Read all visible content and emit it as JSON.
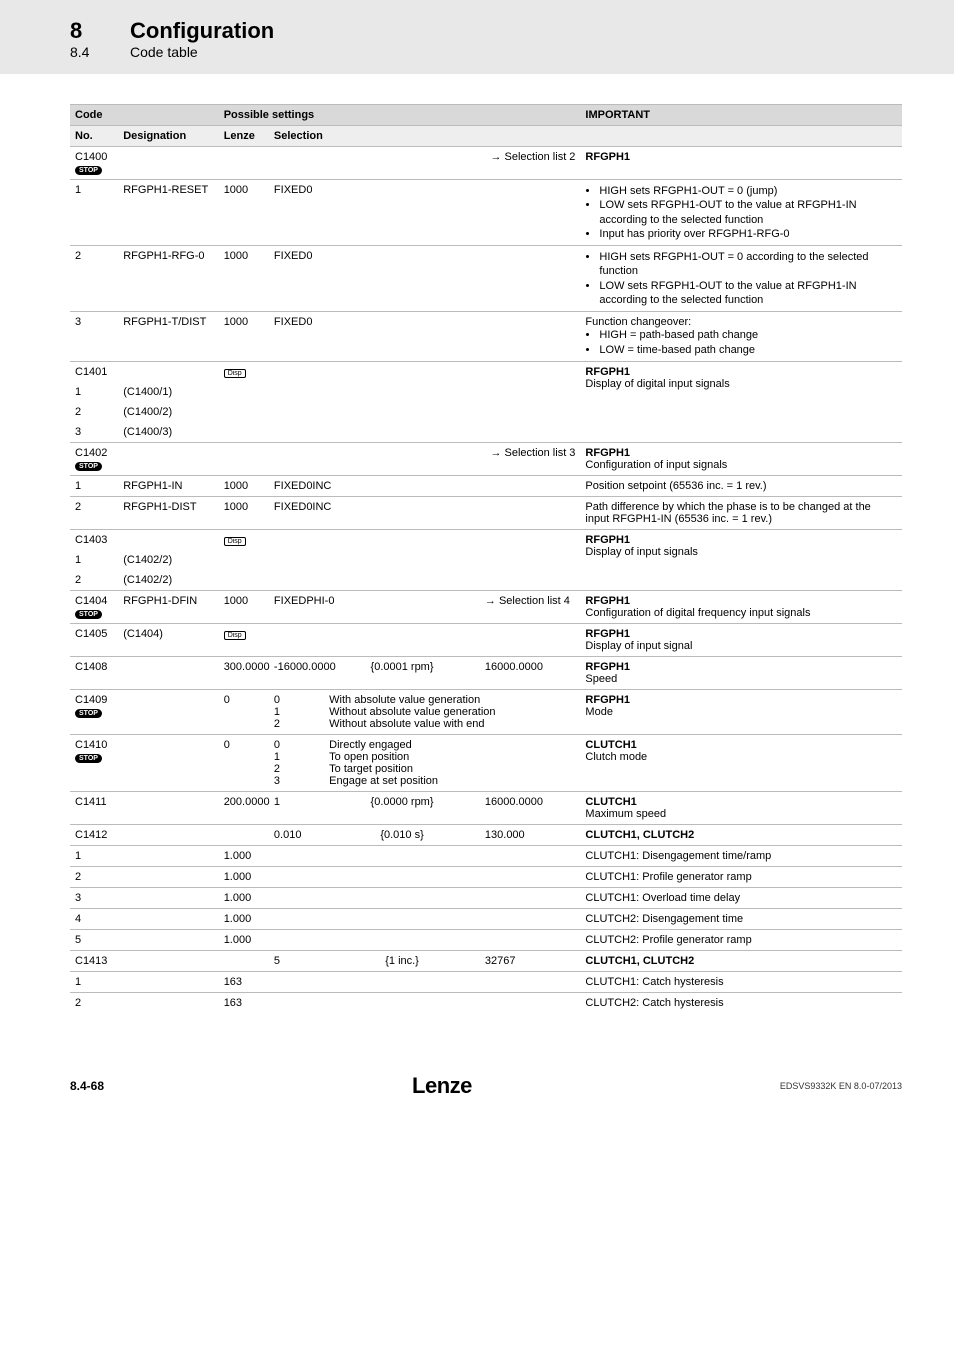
{
  "header": {
    "chapter_num": "8",
    "chapter_title": "Configuration",
    "section_num": "8.4",
    "section_title": "Code table"
  },
  "table": {
    "columns": {
      "code": "Code",
      "possible": "Possible settings",
      "important": "IMPORTANT",
      "no": "No.",
      "designation": "Designation",
      "lenze": "Lenze",
      "selection": "Selection"
    }
  },
  "labels": {
    "stop": "STOP",
    "disp": "Disp"
  },
  "rows": {
    "c1400": {
      "no": "C1400",
      "sel": "→ Selection list 2",
      "imp": "RFGPH1"
    },
    "c1400_1": {
      "no": "1",
      "desig": "RFGPH1-RESET",
      "lenze": "1000",
      "sel": "FIXED0",
      "bul": [
        "HIGH sets RFGPH1-OUT = 0 (jump)",
        "LOW sets RFGPH1-OUT to the value at RFGPH1-IN according to the selected function",
        "Input has priority over RFGPH1-RFG-0"
      ]
    },
    "c1400_2": {
      "no": "2",
      "desig": "RFGPH1-RFG-0",
      "lenze": "1000",
      "sel": "FIXED0",
      "bul": [
        "HIGH sets RFGPH1-OUT = 0 according to the selected function",
        "LOW sets RFGPH1-OUT to the value at RFGPH1-IN according to the selected function"
      ]
    },
    "c1400_3": {
      "no": "3",
      "desig": "RFGPH1-T/DIST",
      "lenze": "1000",
      "sel": "FIXED0",
      "imp_text": "Function changeover:",
      "bul": [
        "HIGH = path-based path change",
        "LOW = time-based path change"
      ]
    },
    "c1401": {
      "no": "C1401",
      "imp_bold": "RFGPH1",
      "imp_text": "Display of digital input signals"
    },
    "c1401_1": {
      "no": "1",
      "desig": "(C1400/1)"
    },
    "c1401_2": {
      "no": "2",
      "desig": "(C1400/2)"
    },
    "c1401_3": {
      "no": "3",
      "desig": "(C1400/3)"
    },
    "c1402": {
      "no": "C1402",
      "sel": "→ Selection list 3",
      "imp_bold": "RFGPH1",
      "imp_text": "Configuration of input signals"
    },
    "c1402_1": {
      "no": "1",
      "desig": "RFGPH1-IN",
      "lenze": "1000",
      "sel": "FIXED0INC",
      "imp": "Position setpoint (65536 inc. = 1 rev.)"
    },
    "c1402_2": {
      "no": "2",
      "desig": "RFGPH1-DIST",
      "lenze": "1000",
      "sel": "FIXED0INC",
      "imp": "Path difference by which the phase is to be changed at the input RFGPH1-IN (65536 inc. = 1 rev.)"
    },
    "c1403": {
      "no": "C1403",
      "imp_bold": "RFGPH1",
      "imp_text": "Display of input signals"
    },
    "c1403_1": {
      "no": "1",
      "desig": "(C1402/2)"
    },
    "c1403_2": {
      "no": "2",
      "desig": "(C1402/2)"
    },
    "c1404": {
      "no": "C1404",
      "desig": "RFGPH1-DFIN",
      "lenze": "1000",
      "sel": "FIXEDPHI-0",
      "max": "→ Selection list 4",
      "imp_bold": "RFGPH1",
      "imp_text": "Configuration of digital frequency input signals"
    },
    "c1405": {
      "no": "C1405",
      "desig": "(C1404)",
      "imp_bold": "RFGPH1",
      "imp_text": "Display of input signal"
    },
    "c1408": {
      "no": "C1408",
      "lenze": "300.0000",
      "min": "-16000.0000",
      "unit": "{0.0001 rpm}",
      "max": "16000.0000",
      "imp_bold": "RFGPH1",
      "imp_text": "Speed"
    },
    "c1409": {
      "no": "C1409",
      "lenze": "0",
      "opts": [
        [
          "0",
          "With absolute value generation"
        ],
        [
          "1",
          "Without absolute value generation"
        ],
        [
          "2",
          "Without absolute value with end"
        ]
      ],
      "imp_bold": "RFGPH1",
      "imp_text": "Mode"
    },
    "c1410": {
      "no": "C1410",
      "lenze": "0",
      "opts": [
        [
          "0",
          "Directly engaged"
        ],
        [
          "1",
          "To open position"
        ],
        [
          "2",
          "To target position"
        ],
        [
          "3",
          "Engage at set position"
        ]
      ],
      "imp_bold": "CLUTCH1",
      "imp_text": "Clutch mode"
    },
    "c1411": {
      "no": "C1411",
      "lenze": "200.0000",
      "min": "1",
      "unit": "{0.0000 rpm}",
      "max": "16000.0000",
      "imp_bold": "CLUTCH1",
      "imp_text": "Maximum speed"
    },
    "c1412": {
      "no": "C1412",
      "min": "0.010",
      "unit": "{0.010 s}",
      "max": "130.000",
      "imp": "CLUTCH1, CLUTCH2"
    },
    "c1412_1": {
      "no": "1",
      "lenze": "1.000",
      "imp": "CLUTCH1: Disengagement time/ramp"
    },
    "c1412_2": {
      "no": "2",
      "lenze": "1.000",
      "imp": "CLUTCH1: Profile generator ramp"
    },
    "c1412_3": {
      "no": "3",
      "lenze": "1.000",
      "imp": "CLUTCH1: Overload time delay"
    },
    "c1412_4": {
      "no": "4",
      "lenze": "1.000",
      "imp": "CLUTCH2: Disengagement time"
    },
    "c1412_5": {
      "no": "5",
      "lenze": "1.000",
      "imp": "CLUTCH2: Profile generator ramp"
    },
    "c1413": {
      "no": "C1413",
      "min": "5",
      "unit": "{1 inc.}",
      "max": "32767",
      "imp": "CLUTCH1, CLUTCH2"
    },
    "c1413_1": {
      "no": "1",
      "lenze": "163",
      "imp": "CLUTCH1: Catch hysteresis"
    },
    "c1413_2": {
      "no": "2",
      "lenze": "163",
      "imp": "CLUTCH2: Catch hysteresis"
    }
  },
  "footer": {
    "page": "8.4-68",
    "brand": "Lenze",
    "doc": "EDSVS9332K EN 8.0-07/2013"
  }
}
